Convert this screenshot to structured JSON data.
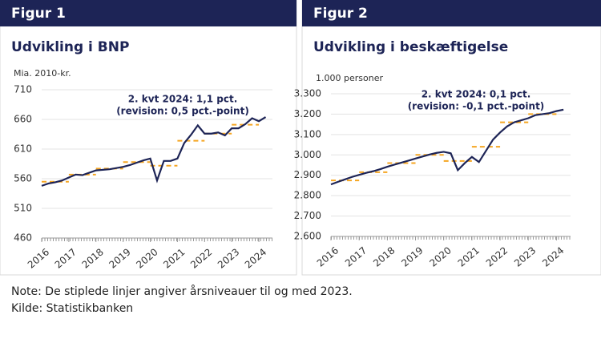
{
  "chart_data": [
    {
      "type": "line",
      "header": "Figur 1",
      "title": "Udvikling i BNP",
      "ylabel": "Mia. 2010-kr.",
      "annotation": [
        "2. kvt 2024: 1,1 pct.",
        "(revision: 0,5 pct.-point)"
      ],
      "x": [
        2016,
        2016.25,
        2016.5,
        2016.75,
        2017,
        2017.25,
        2017.5,
        2017.75,
        2018,
        2018.25,
        2018.5,
        2018.75,
        2019,
        2019.25,
        2019.5,
        2019.75,
        2020,
        2020.25,
        2020.5,
        2020.75,
        2021,
        2021.25,
        2021.5,
        2021.75,
        2022,
        2022.25,
        2022.5,
        2022.75,
        2023,
        2023.25,
        2023.5,
        2023.75,
        2024,
        2024.25
      ],
      "series": [
        {
          "color": "#1d2456",
          "values": [
            548,
            552,
            554,
            557,
            562,
            567,
            566,
            570,
            574,
            575,
            576,
            578,
            580,
            583,
            587,
            591,
            594,
            557,
            590,
            590,
            594,
            620,
            634,
            650,
            636,
            636,
            638,
            633,
            645,
            645,
            652,
            662,
            657,
            664
          ]
        }
      ],
      "annual_years": [
        2016,
        2017,
        2018,
        2019,
        2020,
        2021,
        2022,
        2023
      ],
      "annual_levels": [
        555,
        567,
        577,
        588,
        582,
        624,
        636,
        651
      ],
      "annual_color": "#f5a623",
      "xlim": [
        2016,
        2024.5
      ],
      "xticks": [
        2016,
        2017,
        2018,
        2019,
        2020,
        2021,
        2022,
        2023,
        2024
      ],
      "ylim": [
        460,
        710
      ],
      "yticks": [
        460,
        510,
        560,
        610,
        660,
        710
      ]
    },
    {
      "type": "line",
      "header": "Figur 2",
      "title": "Udvikling i beskæftigelse",
      "ylabel": "1.000 personer",
      "annotation": [
        "2. kvt 2024: 0,1 pct.",
        "(revision: -0,1 pct.-point)"
      ],
      "x": [
        2016,
        2016.25,
        2016.5,
        2016.75,
        2017,
        2017.25,
        2017.5,
        2017.75,
        2018,
        2018.25,
        2018.5,
        2018.75,
        2019,
        2019.25,
        2019.5,
        2019.75,
        2020,
        2020.25,
        2020.5,
        2020.75,
        2021,
        2021.25,
        2021.5,
        2021.75,
        2022,
        2022.25,
        2022.5,
        2022.75,
        2023,
        2023.25,
        2023.5,
        2023.75,
        2024,
        2024.25
      ],
      "series": [
        {
          "color": "#1d2456",
          "values": [
            2855,
            2868,
            2880,
            2892,
            2902,
            2912,
            2920,
            2930,
            2942,
            2952,
            2962,
            2972,
            2982,
            2992,
            3002,
            3010,
            3015,
            3008,
            2925,
            2960,
            2990,
            2965,
            3020,
            3075,
            3110,
            3140,
            3160,
            3170,
            3180,
            3195,
            3200,
            3205,
            3215,
            3222
          ]
        }
      ],
      "annual_years": [
        2016,
        2017,
        2018,
        2019,
        2020,
        2021,
        2022,
        2023
      ],
      "annual_levels": [
        2875,
        2915,
        2960,
        3000,
        2970,
        3040,
        3160,
        3200
      ],
      "annual_color": "#f5a623",
      "xlim": [
        2016,
        2024.5
      ],
      "xticks": [
        2016,
        2017,
        2018,
        2019,
        2020,
        2021,
        2022,
        2023,
        2024
      ],
      "ylim": [
        2600,
        3300
      ],
      "yticks": [
        {
          "value": 2600,
          "label": "2.600"
        },
        {
          "value": 2700,
          "label": "2.700"
        },
        {
          "value": 2800,
          "label": "2.800"
        },
        {
          "value": 2900,
          "label": "2.900"
        },
        {
          "value": 3000,
          "label": "3.000"
        },
        {
          "value": 3100,
          "label": "3.100"
        },
        {
          "value": 3200,
          "label": "3.200"
        },
        {
          "value": 3300,
          "label": "3.300"
        }
      ]
    }
  ],
  "footer": {
    "note": "Note:  De stiplede linjer angiver årsniveauer til og med 2023.",
    "source": "Kilde: Statistikbanken"
  }
}
